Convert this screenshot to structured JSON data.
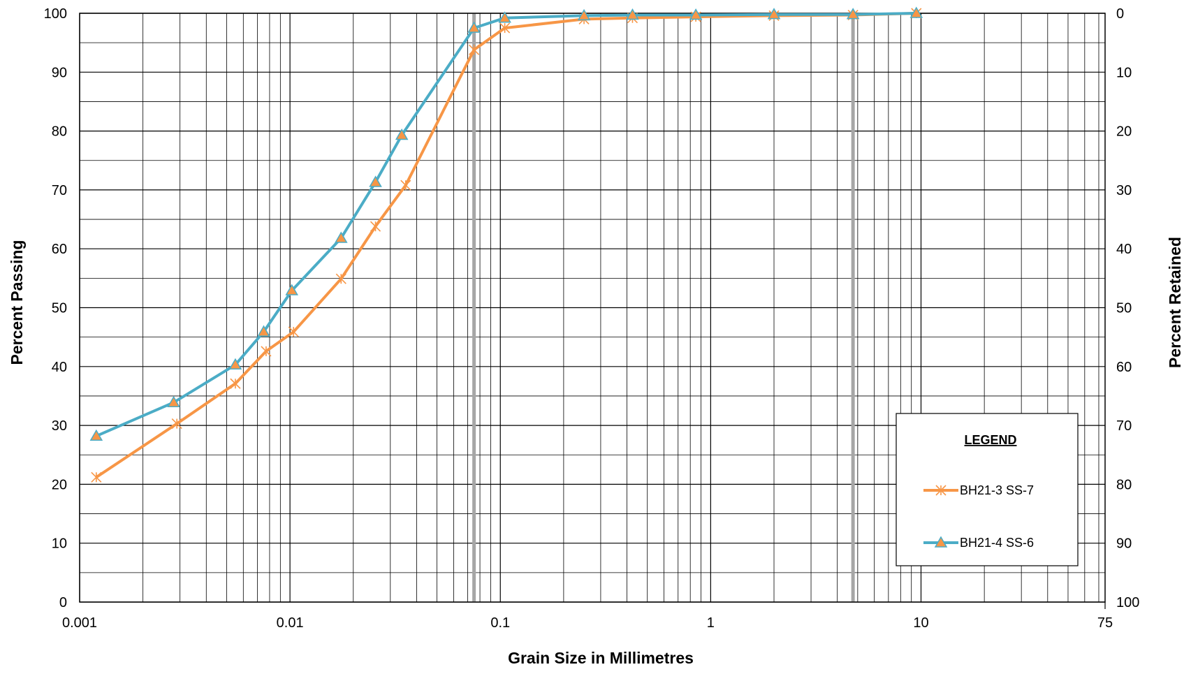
{
  "chart_data": {
    "type": "line",
    "xlabel": "Grain Size in Millimetres",
    "ylabel": "Percent Passing",
    "y2label": "Percent Retained",
    "x_scale": "log",
    "xlim": [
      0.001,
      75
    ],
    "ylim": [
      0,
      100
    ],
    "y2lim": [
      100,
      0
    ],
    "x_tick_labels": [
      "0.001",
      "0.01",
      "0.1",
      "1",
      "10",
      "75"
    ],
    "x_tick_values": [
      0.001,
      0.01,
      0.1,
      1,
      10,
      75
    ],
    "y_tick_labels": [
      "0",
      "10",
      "20",
      "30",
      "40",
      "50",
      "60",
      "70",
      "80",
      "90",
      "100"
    ],
    "y2_tick_labels": [
      "100",
      "90",
      "80",
      "70",
      "60",
      "50",
      "40",
      "30",
      "20",
      "10",
      "0"
    ],
    "grid": true,
    "reference_lines_x": [
      0.075,
      4.75
    ],
    "legend": {
      "title": "LEGEND",
      "position": "bottom-right"
    },
    "series": [
      {
        "name": "BH21-3 SS-7",
        "color": "#f79646",
        "marker": "asterisk",
        "x": [
          0.0012,
          0.0029,
          0.0055,
          0.0077,
          0.0104,
          0.0175,
          0.0255,
          0.0355,
          0.075,
          0.105,
          0.25,
          0.425,
          0.85,
          2.0,
          4.75,
          9.5
        ],
        "y": [
          21.2,
          30.3,
          37.1,
          42.6,
          45.9,
          54.9,
          63.8,
          70.8,
          93.8,
          97.5,
          99.0,
          99.2,
          99.4,
          99.6,
          99.7,
          100
        ]
      },
      {
        "name": "BH21-4 SS-6",
        "color": "#4bacc6",
        "marker": "triangle",
        "x": [
          0.0012,
          0.0028,
          0.0055,
          0.0075,
          0.0102,
          0.0175,
          0.0255,
          0.034,
          0.075,
          0.105,
          0.25,
          0.425,
          0.85,
          2.0,
          4.75,
          9.5
        ],
        "y": [
          28.2,
          33.9,
          40.3,
          45.9,
          52.9,
          61.8,
          71.3,
          79.3,
          97.5,
          99.2,
          99.6,
          99.7,
          99.7,
          99.8,
          99.8,
          100
        ]
      }
    ]
  }
}
